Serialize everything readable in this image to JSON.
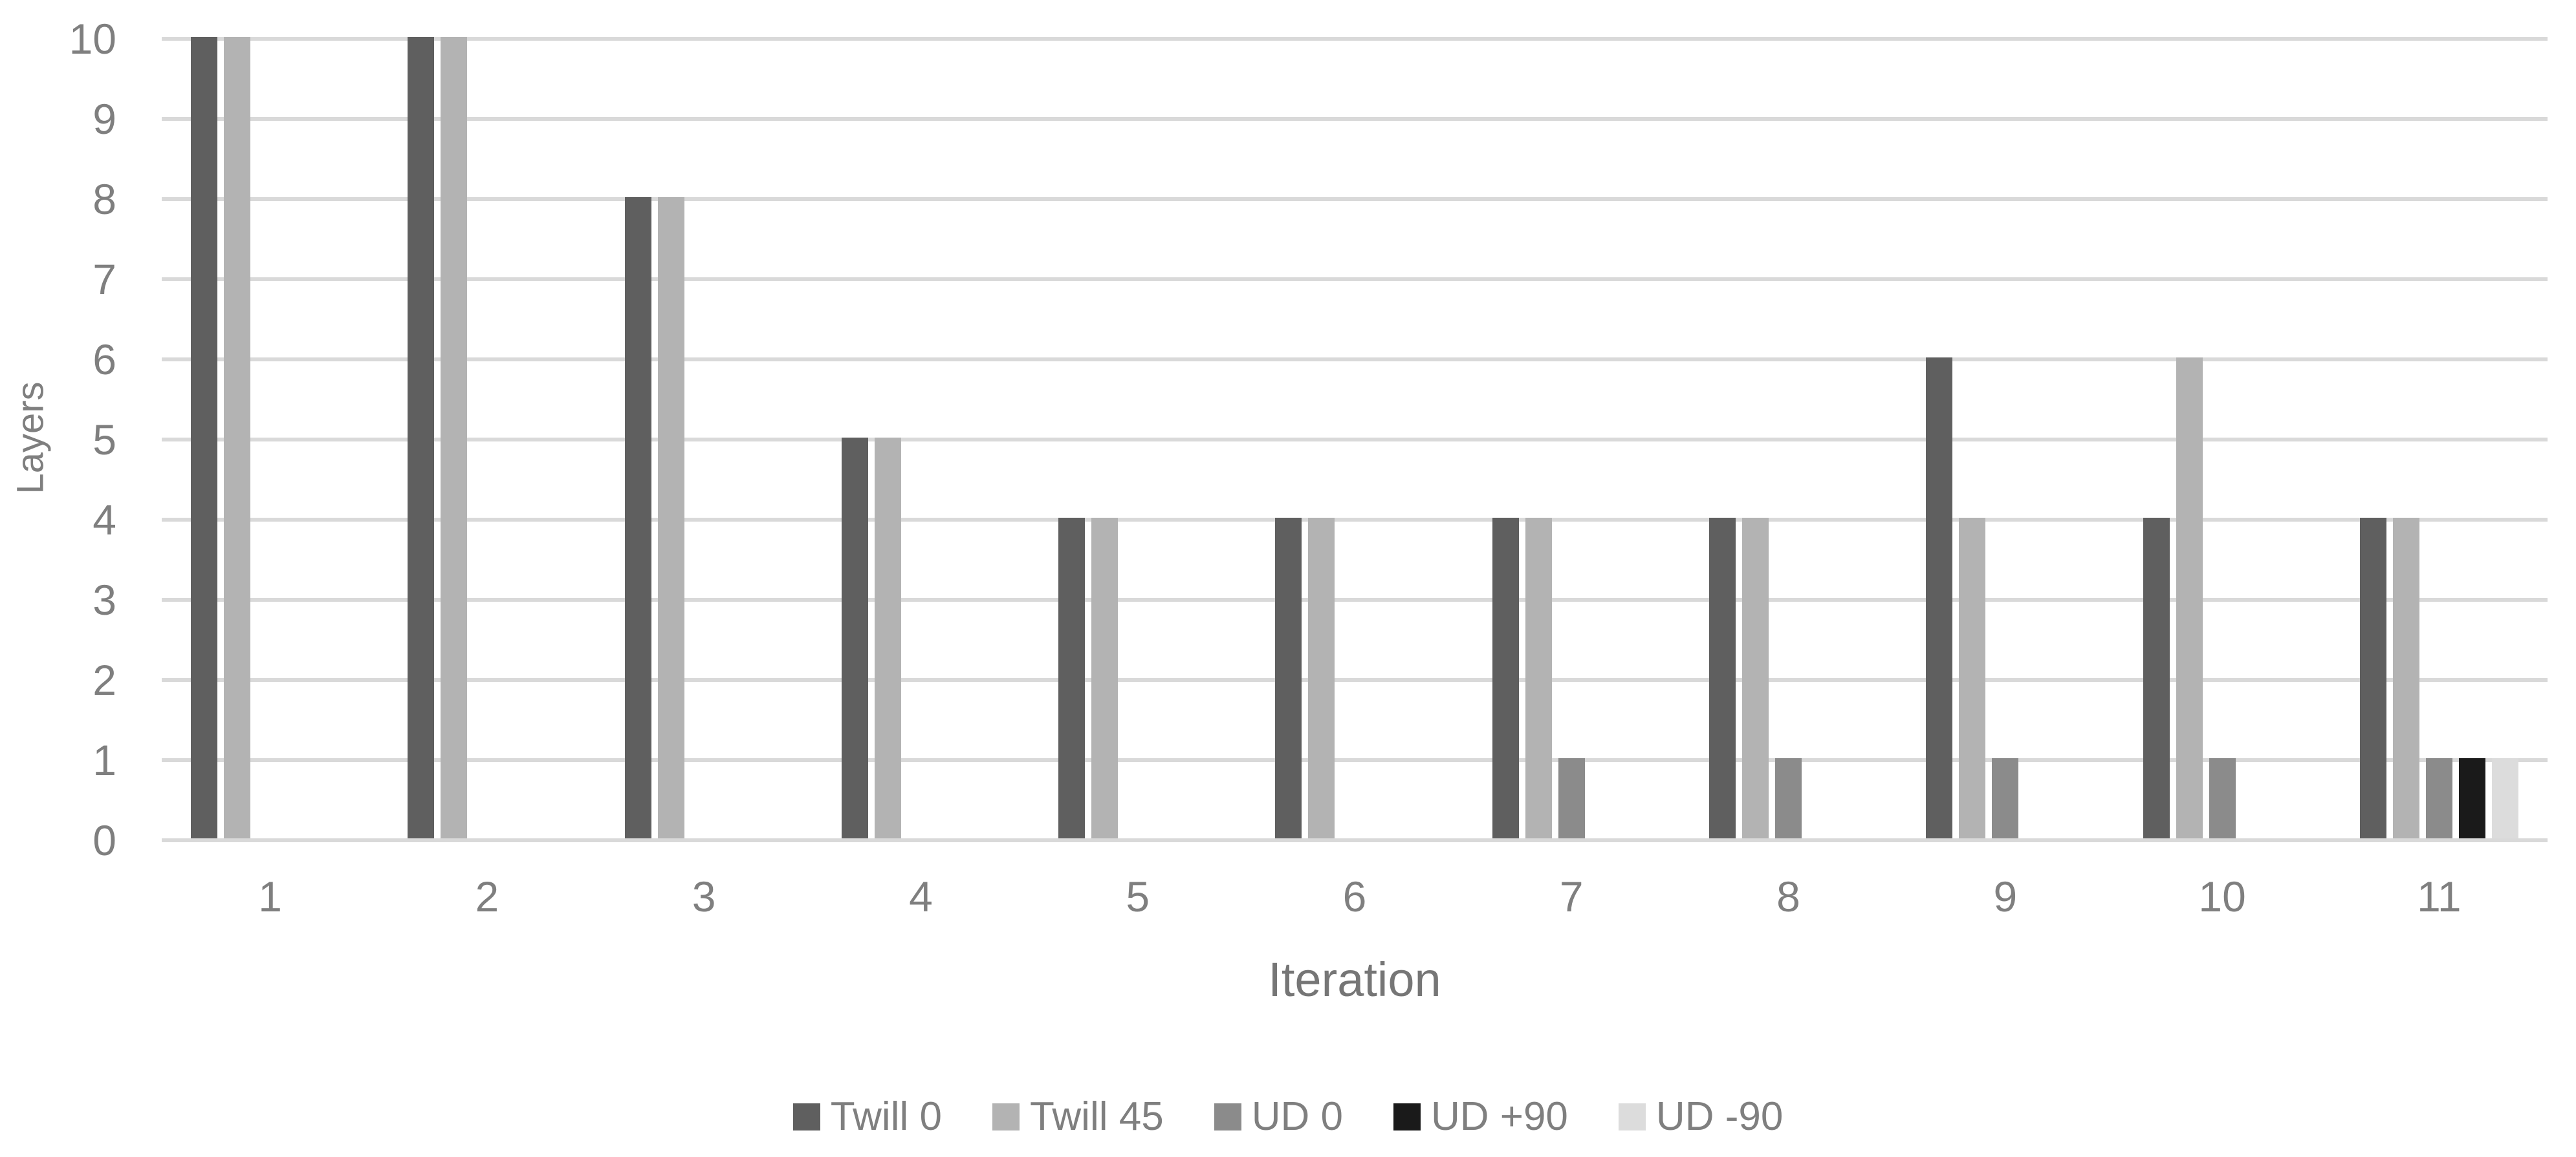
{
  "chart_data": {
    "type": "bar",
    "title": "",
    "xlabel": "Iteration",
    "ylabel": "Layers",
    "categories": [
      "1",
      "2",
      "3",
      "4",
      "5",
      "6",
      "7",
      "8",
      "9",
      "10",
      "11"
    ],
    "series": [
      {
        "name": "Twill 0",
        "color": "#5f5f5f",
        "values": [
          10,
          10,
          8,
          5,
          4,
          4,
          4,
          4,
          6,
          4,
          4
        ]
      },
      {
        "name": "Twill 45",
        "color": "#b3b3b3",
        "values": [
          10,
          10,
          8,
          5,
          4,
          4,
          4,
          4,
          4,
          6,
          4
        ]
      },
      {
        "name": "UD 0",
        "color": "#8b8b8b",
        "values": [
          0,
          0,
          0,
          0,
          0,
          0,
          1,
          1,
          1,
          1,
          1
        ]
      },
      {
        "name": "UD +90",
        "color": "#1a1a1a",
        "values": [
          0,
          0,
          0,
          0,
          0,
          0,
          0,
          0,
          0,
          0,
          1
        ]
      },
      {
        "name": "UD -90",
        "color": "#dcdcdc",
        "values": [
          0,
          0,
          0,
          0,
          0,
          0,
          0,
          0,
          0,
          0,
          1
        ]
      }
    ],
    "ylim": [
      0,
      10
    ],
    "yticks": [
      0,
      1,
      2,
      3,
      4,
      5,
      6,
      7,
      8,
      9,
      10
    ],
    "grid": true,
    "legend_position": "bottom",
    "colors": {
      "gridline": "#d9d9d9",
      "axis_text": "#7f7f7f",
      "background": "#ffffff"
    }
  }
}
